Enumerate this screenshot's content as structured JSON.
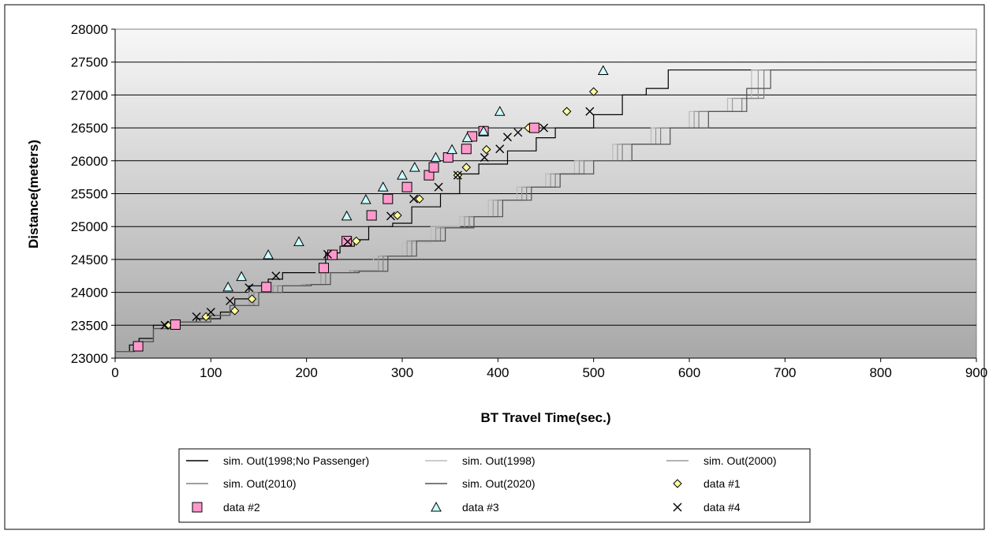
{
  "chart_data": {
    "type": "scatter",
    "title": "",
    "xlabel": "BT Travel Time(sec.)",
    "ylabel": "Distance(meters)",
    "xlim": [
      0,
      900
    ],
    "ylim": [
      23000,
      28000
    ],
    "x_ticks": [
      "0",
      "100",
      "200",
      "300",
      "400",
      "500",
      "600",
      "700",
      "800",
      "900"
    ],
    "y_ticks": [
      "23000",
      "23500",
      "24000",
      "24500",
      "25000",
      "25500",
      "26000",
      "26500",
      "27000",
      "27500",
      "28000"
    ],
    "grid": "horizontal",
    "legend_position": "bottom",
    "colors": {
      "plot_top": "#f7f7f7",
      "plot_bottom": "#a8a8a8",
      "data1_fill": "#ffff99",
      "data2_fill": "#ff99cc",
      "data3_fill": "#ccffff",
      "data4_stroke": "#000000"
    },
    "series": [
      {
        "name": "sim. Out(1998;No Passenger)",
        "kind": "line",
        "color": "#000000",
        "points": [
          [
            0,
            23100
          ],
          [
            8,
            23100
          ],
          [
            15,
            23200
          ],
          [
            25,
            23300
          ],
          [
            40,
            23500
          ],
          [
            60,
            23550
          ],
          [
            85,
            23600
          ],
          [
            110,
            23700
          ],
          [
            125,
            23900
          ],
          [
            140,
            24100
          ],
          [
            160,
            24200
          ],
          [
            175,
            24300
          ],
          [
            195,
            24300
          ],
          [
            220,
            24600
          ],
          [
            235,
            24700
          ],
          [
            250,
            24800
          ],
          [
            265,
            25000
          ],
          [
            290,
            25050
          ],
          [
            310,
            25300
          ],
          [
            340,
            25500
          ],
          [
            360,
            25800
          ],
          [
            380,
            25950
          ],
          [
            410,
            26150
          ],
          [
            440,
            26350
          ],
          [
            460,
            26500
          ],
          [
            500,
            26700
          ],
          [
            530,
            27000
          ],
          [
            555,
            27100
          ],
          [
            578,
            27380
          ],
          [
            900,
            27380
          ]
        ]
      },
      {
        "name": "sim. Out(1998)",
        "kind": "line",
        "color": "#bbbbbb",
        "points": [
          [
            0,
            23100
          ],
          [
            10,
            23100
          ],
          [
            20,
            23250
          ],
          [
            40,
            23450
          ],
          [
            60,
            23550
          ],
          [
            100,
            23650
          ],
          [
            120,
            23800
          ],
          [
            140,
            24000
          ],
          [
            160,
            24100
          ],
          [
            190,
            24150
          ],
          [
            210,
            24300
          ],
          [
            240,
            24350
          ],
          [
            270,
            24550
          ],
          [
            300,
            24750
          ],
          [
            330,
            25000
          ],
          [
            360,
            25150
          ],
          [
            390,
            25400
          ],
          [
            420,
            25600
          ],
          [
            450,
            25800
          ],
          [
            480,
            26000
          ],
          [
            520,
            26250
          ],
          [
            560,
            26500
          ],
          [
            600,
            26750
          ],
          [
            640,
            26950
          ],
          [
            665,
            27380
          ],
          [
            900,
            27380
          ]
        ]
      },
      {
        "name": "sim. Out(2000)",
        "kind": "line",
        "color": "#9a9a9a",
        "points": [
          [
            0,
            23100
          ],
          [
            10,
            23100
          ],
          [
            20,
            23250
          ],
          [
            40,
            23450
          ],
          [
            60,
            23550
          ],
          [
            100,
            23650
          ],
          [
            120,
            23800
          ],
          [
            140,
            24000
          ],
          [
            165,
            24100
          ],
          [
            195,
            24120
          ],
          [
            215,
            24300
          ],
          [
            245,
            24330
          ],
          [
            275,
            24550
          ],
          [
            305,
            24780
          ],
          [
            335,
            24980
          ],
          [
            365,
            25150
          ],
          [
            395,
            25400
          ],
          [
            425,
            25600
          ],
          [
            455,
            25800
          ],
          [
            485,
            26000
          ],
          [
            525,
            26250
          ],
          [
            565,
            26500
          ],
          [
            605,
            26750
          ],
          [
            645,
            26950
          ],
          [
            672,
            27380
          ],
          [
            900,
            27380
          ]
        ]
      },
      {
        "name": "sim. Out(2010)",
        "kind": "line",
        "color": "#808080",
        "points": [
          [
            0,
            23100
          ],
          [
            10,
            23100
          ],
          [
            20,
            23250
          ],
          [
            40,
            23450
          ],
          [
            60,
            23550
          ],
          [
            100,
            23650
          ],
          [
            120,
            23800
          ],
          [
            145,
            24000
          ],
          [
            170,
            24100
          ],
          [
            200,
            24120
          ],
          [
            220,
            24300
          ],
          [
            250,
            24320
          ],
          [
            280,
            24550
          ],
          [
            310,
            24780
          ],
          [
            340,
            24980
          ],
          [
            370,
            25150
          ],
          [
            400,
            25400
          ],
          [
            430,
            25600
          ],
          [
            460,
            25800
          ],
          [
            490,
            26000
          ],
          [
            530,
            26250
          ],
          [
            570,
            26500
          ],
          [
            610,
            26750
          ],
          [
            655,
            26950
          ],
          [
            678,
            27380
          ],
          [
            900,
            27380
          ]
        ]
      },
      {
        "name": "sim. Out(2020)",
        "kind": "line",
        "color": "#505050",
        "points": [
          [
            0,
            23100
          ],
          [
            10,
            23100
          ],
          [
            20,
            23250
          ],
          [
            40,
            23450
          ],
          [
            60,
            23550
          ],
          [
            100,
            23650
          ],
          [
            120,
            23800
          ],
          [
            150,
            24000
          ],
          [
            175,
            24100
          ],
          [
            205,
            24120
          ],
          [
            225,
            24300
          ],
          [
            255,
            24320
          ],
          [
            285,
            24550
          ],
          [
            315,
            24780
          ],
          [
            345,
            24980
          ],
          [
            375,
            25150
          ],
          [
            405,
            25400
          ],
          [
            435,
            25600
          ],
          [
            465,
            25800
          ],
          [
            500,
            26000
          ],
          [
            540,
            26250
          ],
          [
            580,
            26500
          ],
          [
            620,
            26750
          ],
          [
            660,
            27100
          ],
          [
            685,
            27380
          ],
          [
            900,
            27380
          ]
        ]
      },
      {
        "name": "data #1",
        "kind": "marker",
        "marker": "diamond",
        "points": [
          [
            55,
            23500
          ],
          [
            95,
            23630
          ],
          [
            125,
            23720
          ],
          [
            143,
            23900
          ],
          [
            252,
            24780
          ],
          [
            295,
            25170
          ],
          [
            318,
            25420
          ],
          [
            358,
            25780
          ],
          [
            367,
            25900
          ],
          [
            388,
            26170
          ],
          [
            432,
            26500
          ],
          [
            472,
            26750
          ],
          [
            500,
            27050
          ]
        ]
      },
      {
        "name": "data #2",
        "kind": "marker",
        "marker": "square",
        "points": [
          [
            24,
            23180
          ],
          [
            63,
            23510
          ],
          [
            158,
            24080
          ],
          [
            218,
            24370
          ],
          [
            227,
            24570
          ],
          [
            242,
            24780
          ],
          [
            268,
            25170
          ],
          [
            285,
            25420
          ],
          [
            305,
            25600
          ],
          [
            328,
            25780
          ],
          [
            333,
            25900
          ],
          [
            348,
            26050
          ],
          [
            367,
            26180
          ],
          [
            373,
            26370
          ],
          [
            385,
            26450
          ],
          [
            438,
            26500
          ]
        ]
      },
      {
        "name": "data #3",
        "kind": "marker",
        "marker": "triangle",
        "points": [
          [
            118,
            24080
          ],
          [
            132,
            24240
          ],
          [
            160,
            24570
          ],
          [
            192,
            24770
          ],
          [
            242,
            25160
          ],
          [
            262,
            25410
          ],
          [
            280,
            25600
          ],
          [
            300,
            25780
          ],
          [
            313,
            25900
          ],
          [
            335,
            26050
          ],
          [
            352,
            26170
          ],
          [
            368,
            26350
          ],
          [
            385,
            26450
          ],
          [
            402,
            26750
          ],
          [
            510,
            27370
          ]
        ]
      },
      {
        "name": "data #4",
        "kind": "marker",
        "marker": "x",
        "points": [
          [
            52,
            23500
          ],
          [
            85,
            23630
          ],
          [
            100,
            23700
          ],
          [
            120,
            23870
          ],
          [
            140,
            24070
          ],
          [
            168,
            24250
          ],
          [
            222,
            24580
          ],
          [
            243,
            24770
          ],
          [
            288,
            25160
          ],
          [
            312,
            25420
          ],
          [
            338,
            25600
          ],
          [
            358,
            25780
          ],
          [
            386,
            26050
          ],
          [
            402,
            26180
          ],
          [
            410,
            26360
          ],
          [
            421,
            26430
          ],
          [
            448,
            26500
          ],
          [
            496,
            26750
          ]
        ]
      }
    ]
  }
}
